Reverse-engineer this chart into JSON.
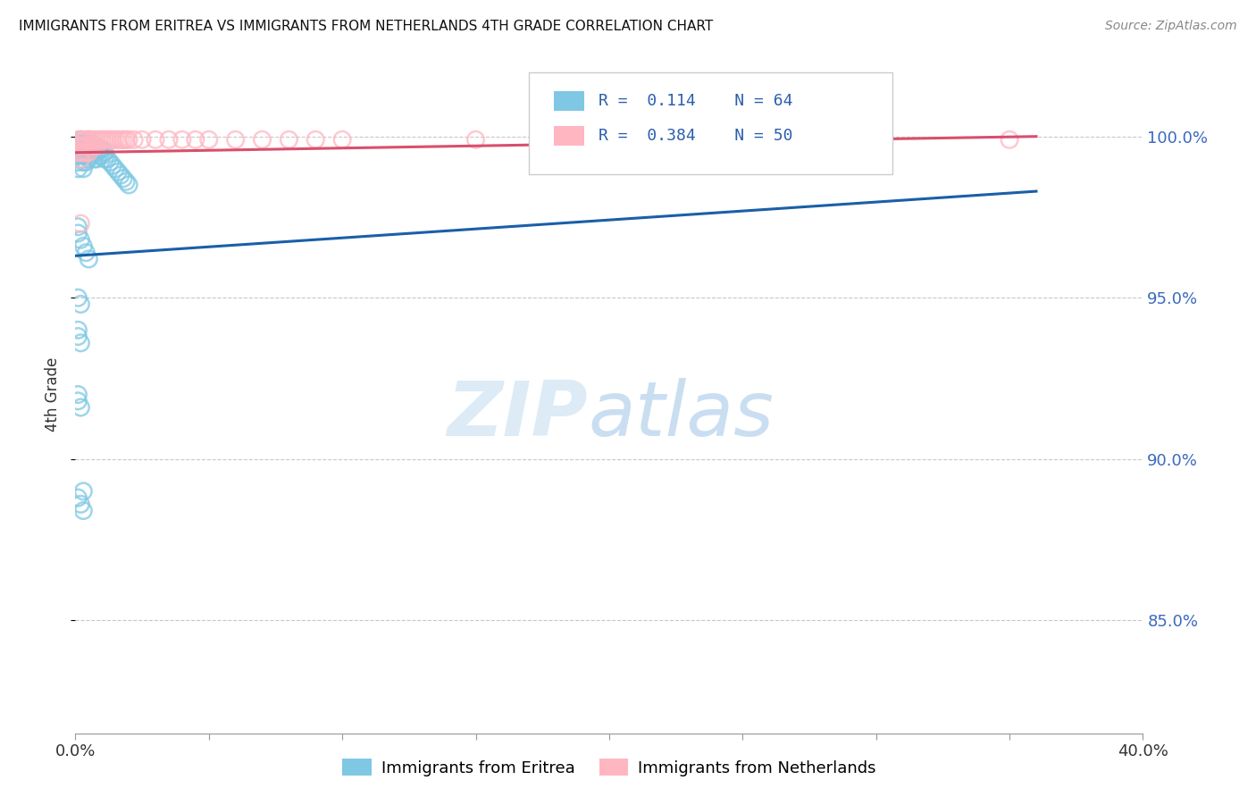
{
  "title": "IMMIGRANTS FROM ERITREA VS IMMIGRANTS FROM NETHERLANDS 4TH GRADE CORRELATION CHART",
  "source": "Source: ZipAtlas.com",
  "ylabel": "4th Grade",
  "ytick_labels": [
    "100.0%",
    "95.0%",
    "90.0%",
    "85.0%"
  ],
  "ytick_values": [
    1.0,
    0.95,
    0.9,
    0.85
  ],
  "xlim": [
    0.0,
    0.4
  ],
  "ylim": [
    0.815,
    1.025
  ],
  "R_eritrea": 0.114,
  "N_eritrea": 64,
  "R_netherlands": 0.384,
  "N_netherlands": 50,
  "color_eritrea": "#7ec8e3",
  "color_netherlands": "#ffb6c1",
  "trendline_color_eritrea": "#1a5fa8",
  "trendline_color_netherlands": "#d94f6e",
  "legend_color_eritrea": "#7ec8e3",
  "legend_color_netherlands": "#ffb6c1",
  "legend_text_color": "#2b5fad",
  "watermark_zip_color": "#c5dff0",
  "watermark_atlas_color": "#a8c8e8",
  "eritrea_trend_x0": 0.0,
  "eritrea_trend_y0": 0.963,
  "eritrea_trend_x1": 0.36,
  "eritrea_trend_y1": 0.983,
  "netherlands_trend_x0": 0.0,
  "netherlands_trend_y0": 0.995,
  "netherlands_trend_x1": 0.36,
  "netherlands_trend_y1": 1.0,
  "scatter_eritrea_x": [
    0.001,
    0.001,
    0.001,
    0.001,
    0.001,
    0.002,
    0.002,
    0.002,
    0.002,
    0.003,
    0.003,
    0.003,
    0.003,
    0.003,
    0.004,
    0.004,
    0.004,
    0.004,
    0.005,
    0.005,
    0.005,
    0.005,
    0.006,
    0.006,
    0.006,
    0.007,
    0.007,
    0.007,
    0.008,
    0.008,
    0.008,
    0.009,
    0.009,
    0.01,
    0.01,
    0.011,
    0.011,
    0.012,
    0.013,
    0.014,
    0.015,
    0.016,
    0.017,
    0.018,
    0.019,
    0.02,
    0.001,
    0.001,
    0.002,
    0.003,
    0.004,
    0.005,
    0.001,
    0.002,
    0.001,
    0.001,
    0.002,
    0.001,
    0.001,
    0.002,
    0.003,
    0.001,
    0.002,
    0.003
  ],
  "scatter_eritrea_y": [
    0.998,
    0.996,
    0.994,
    0.992,
    0.99,
    0.999,
    0.997,
    0.995,
    0.993,
    0.998,
    0.996,
    0.994,
    0.992,
    0.99,
    0.998,
    0.996,
    0.994,
    0.992,
    0.999,
    0.997,
    0.995,
    0.993,
    0.998,
    0.996,
    0.994,
    0.997,
    0.995,
    0.993,
    0.997,
    0.995,
    0.993,
    0.996,
    0.994,
    0.996,
    0.994,
    0.995,
    0.993,
    0.993,
    0.992,
    0.991,
    0.99,
    0.989,
    0.988,
    0.987,
    0.986,
    0.985,
    0.972,
    0.97,
    0.968,
    0.966,
    0.964,
    0.962,
    0.95,
    0.948,
    0.94,
    0.938,
    0.936,
    0.92,
    0.918,
    0.916,
    0.89,
    0.888,
    0.886,
    0.884
  ],
  "scatter_netherlands_x": [
    0.001,
    0.001,
    0.001,
    0.002,
    0.002,
    0.002,
    0.002,
    0.003,
    0.003,
    0.003,
    0.004,
    0.004,
    0.004,
    0.005,
    0.005,
    0.005,
    0.006,
    0.006,
    0.007,
    0.007,
    0.008,
    0.008,
    0.009,
    0.01,
    0.011,
    0.012,
    0.013,
    0.014,
    0.015,
    0.016,
    0.017,
    0.018,
    0.019,
    0.02,
    0.022,
    0.025,
    0.03,
    0.035,
    0.04,
    0.045,
    0.05,
    0.06,
    0.07,
    0.08,
    0.09,
    0.1,
    0.15,
    0.2,
    0.35,
    0.002
  ],
  "scatter_netherlands_y": [
    0.999,
    0.997,
    0.995,
    0.999,
    0.997,
    0.995,
    0.993,
    0.999,
    0.997,
    0.995,
    0.999,
    0.997,
    0.995,
    0.999,
    0.997,
    0.995,
    0.999,
    0.997,
    0.999,
    0.997,
    0.999,
    0.997,
    0.999,
    0.999,
    0.999,
    0.999,
    0.999,
    0.999,
    0.999,
    0.999,
    0.999,
    0.999,
    0.999,
    0.999,
    0.999,
    0.999,
    0.999,
    0.999,
    0.999,
    0.999,
    0.999,
    0.999,
    0.999,
    0.999,
    0.999,
    0.999,
    0.999,
    0.999,
    0.999,
    0.973
  ]
}
